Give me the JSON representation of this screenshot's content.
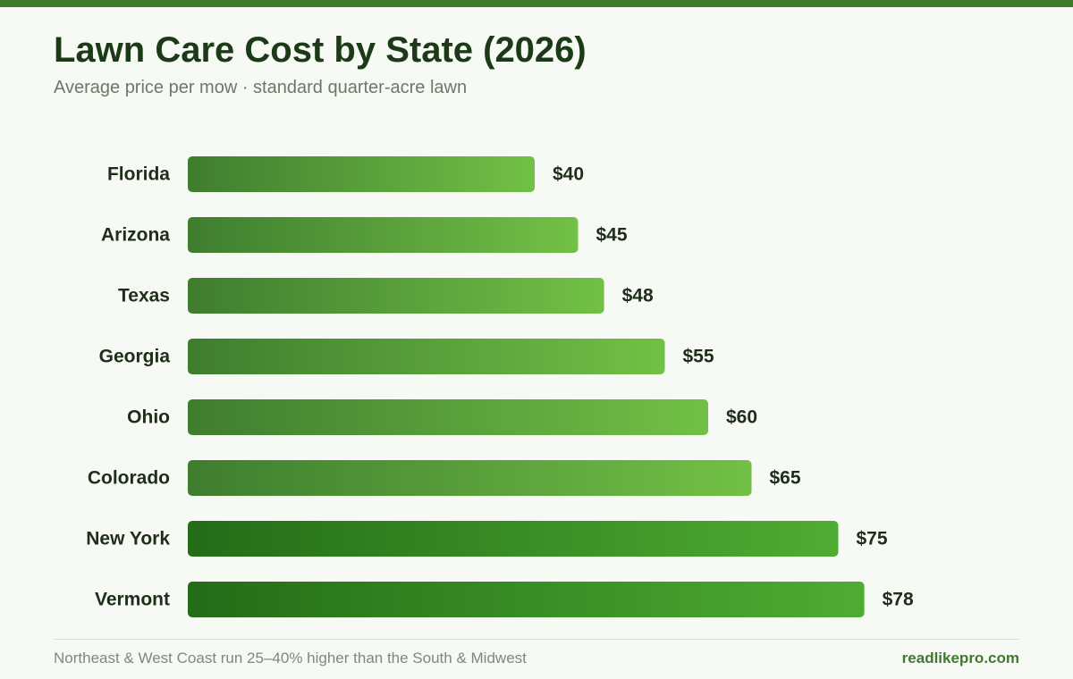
{
  "header": {
    "title": "Lawn Care Cost by State (2026)",
    "subtitle": "Average price per mow · standard quarter-acre lawn"
  },
  "chart_data": {
    "type": "bar",
    "orientation": "horizontal",
    "title": "Lawn Care Cost by State (2026)",
    "subtitle": "Average price per mow · standard quarter-acre lawn",
    "xlabel": "",
    "ylabel": "",
    "grid": false,
    "legend": "none",
    "xlim": [
      0,
      100
    ],
    "categories": [
      "Florida",
      "Arizona",
      "Texas",
      "Georgia",
      "Ohio",
      "Colorado",
      "New York",
      "Vermont"
    ],
    "values": [
      40,
      45,
      48,
      55,
      60,
      65,
      75,
      78
    ],
    "value_labels": [
      "$40",
      "$45",
      "$48",
      "$55",
      "$60",
      "$65",
      "$75",
      "$78"
    ],
    "highlighted_categories": [
      "New York",
      "Vermont"
    ],
    "colors": {
      "bar_start": "#3f7d2f",
      "bar_end": "#72c046",
      "highlight_start": "#246c18",
      "highlight_end": "#4fac32",
      "label": "#1f2e1b",
      "value_label": "#1f2e1b"
    }
  },
  "footer": {
    "note": "Northeast & West Coast run 25–40% higher than the South & Midwest",
    "brand": "readlikepro.com"
  }
}
